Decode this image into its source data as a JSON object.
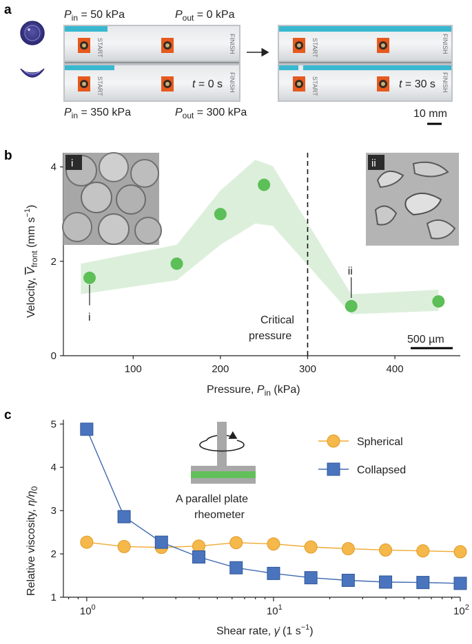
{
  "panel_a": {
    "label": "a",
    "p_in_top": {
      "var": "P",
      "sub": "in",
      "rest": " = 50 kPa"
    },
    "p_out_top": {
      "var": "P",
      "sub": "out",
      "rest": " = 0 kPa"
    },
    "p_in_bottom": {
      "var": "P",
      "sub": "in",
      "rest": " = 350 kPa"
    },
    "p_out_bottom": {
      "var": "P",
      "sub": "out",
      "rest": " = 300 kPa"
    },
    "t_left": {
      "var": "t",
      "rest": " = 0 s"
    },
    "t_right": {
      "var": "t",
      "rest": " = 30 s"
    },
    "scale_bar": "10 mm",
    "start_text": "START",
    "finish_text": "FINISH",
    "arrow_icon": "right-arrow-icon",
    "colors": {
      "fluid": "#39b8d0",
      "capsule": "#3d3a8e",
      "tag": "#e65a1e"
    }
  },
  "chart_data": [
    {
      "type": "scatter",
      "panel": "b",
      "x": [
        50,
        150,
        200,
        250,
        350,
        450
      ],
      "y": [
        1.65,
        1.95,
        3.0,
        3.62,
        1.05,
        1.15
      ],
      "band_upper": [
        [
          40,
          1.95
        ],
        [
          150,
          2.35
        ],
        [
          200,
          3.5
        ],
        [
          240,
          4.15
        ],
        [
          260,
          4.02
        ],
        [
          350,
          1.3
        ],
        [
          450,
          1.4
        ]
      ],
      "band_lower": [
        [
          40,
          1.3
        ],
        [
          150,
          1.6
        ],
        [
          200,
          2.35
        ],
        [
          240,
          2.8
        ],
        [
          260,
          2.75
        ],
        [
          350,
          0.88
        ],
        [
          450,
          0.95
        ]
      ],
      "xlim": [
        20,
        475
      ],
      "ylim": [
        0,
        4.3
      ],
      "xticks": [
        100,
        200,
        300,
        400
      ],
      "yticks": [
        0,
        2,
        4
      ],
      "xlabel": {
        "main": "Pressure, ",
        "var": "P",
        "sub": "in",
        "rest": " (kPa)"
      },
      "ylabel": {
        "main": "Velocity, ",
        "var": "V",
        "sub": "front",
        "rest": " (mm s",
        "sup": "−1",
        "end": ")"
      },
      "critical_x": 300,
      "critical_label": [
        "Critical",
        "pressure"
      ],
      "point_labels": [
        {
          "text": "i",
          "x": 50
        },
        {
          "text": "ii",
          "x": 350
        }
      ],
      "inset_labels": [
        "i",
        "ii"
      ],
      "scale_bar": "500 µm",
      "colors": {
        "marker": "#5cbf57",
        "band": "#dcefdb",
        "critical": "#111111"
      }
    },
    {
      "type": "line",
      "panel": "c",
      "xscale": "log",
      "x": [
        1.0,
        1.585,
        2.512,
        3.981,
        6.31,
        10.0,
        15.85,
        25.12,
        39.81,
        63.1,
        100.0
      ],
      "series": [
        {
          "name": "Spherical",
          "values": [
            2.27,
            2.17,
            2.15,
            2.18,
            2.26,
            2.23,
            2.16,
            2.12,
            2.09,
            2.07,
            2.05
          ],
          "color": "#f0a830",
          "marker": "circle"
        },
        {
          "name": "Collapsed",
          "values": [
            4.88,
            2.86,
            2.27,
            1.93,
            1.68,
            1.55,
            1.45,
            1.39,
            1.35,
            1.34,
            1.32
          ],
          "color": "#3f69b0",
          "marker": "square"
        }
      ],
      "xlim": [
        0.75,
        100
      ],
      "ylim": [
        1,
        5.1
      ],
      "yticks": [
        1,
        2,
        3,
        4,
        5
      ],
      "xticks": [
        {
          "base": "10",
          "exp": "0",
          "value": 1
        },
        {
          "base": "10",
          "exp": "1",
          "value": 10
        },
        {
          "base": "10",
          "exp": "2",
          "value": 100
        }
      ],
      "xlabel": {
        "main": "Shear rate, ",
        "var": "γ̇",
        "rest": " (1 s",
        "sup": "−1",
        "end": ")"
      },
      "ylabel": {
        "main": "Relative viscosity, ",
        "var": "η/η",
        "sub": "0"
      },
      "legend_position": "top-right",
      "rheometer_caption": [
        "A parallel plate",
        "rheometer"
      ],
      "rheometer_icon": "parallel-plate-rheometer-icon"
    }
  ]
}
